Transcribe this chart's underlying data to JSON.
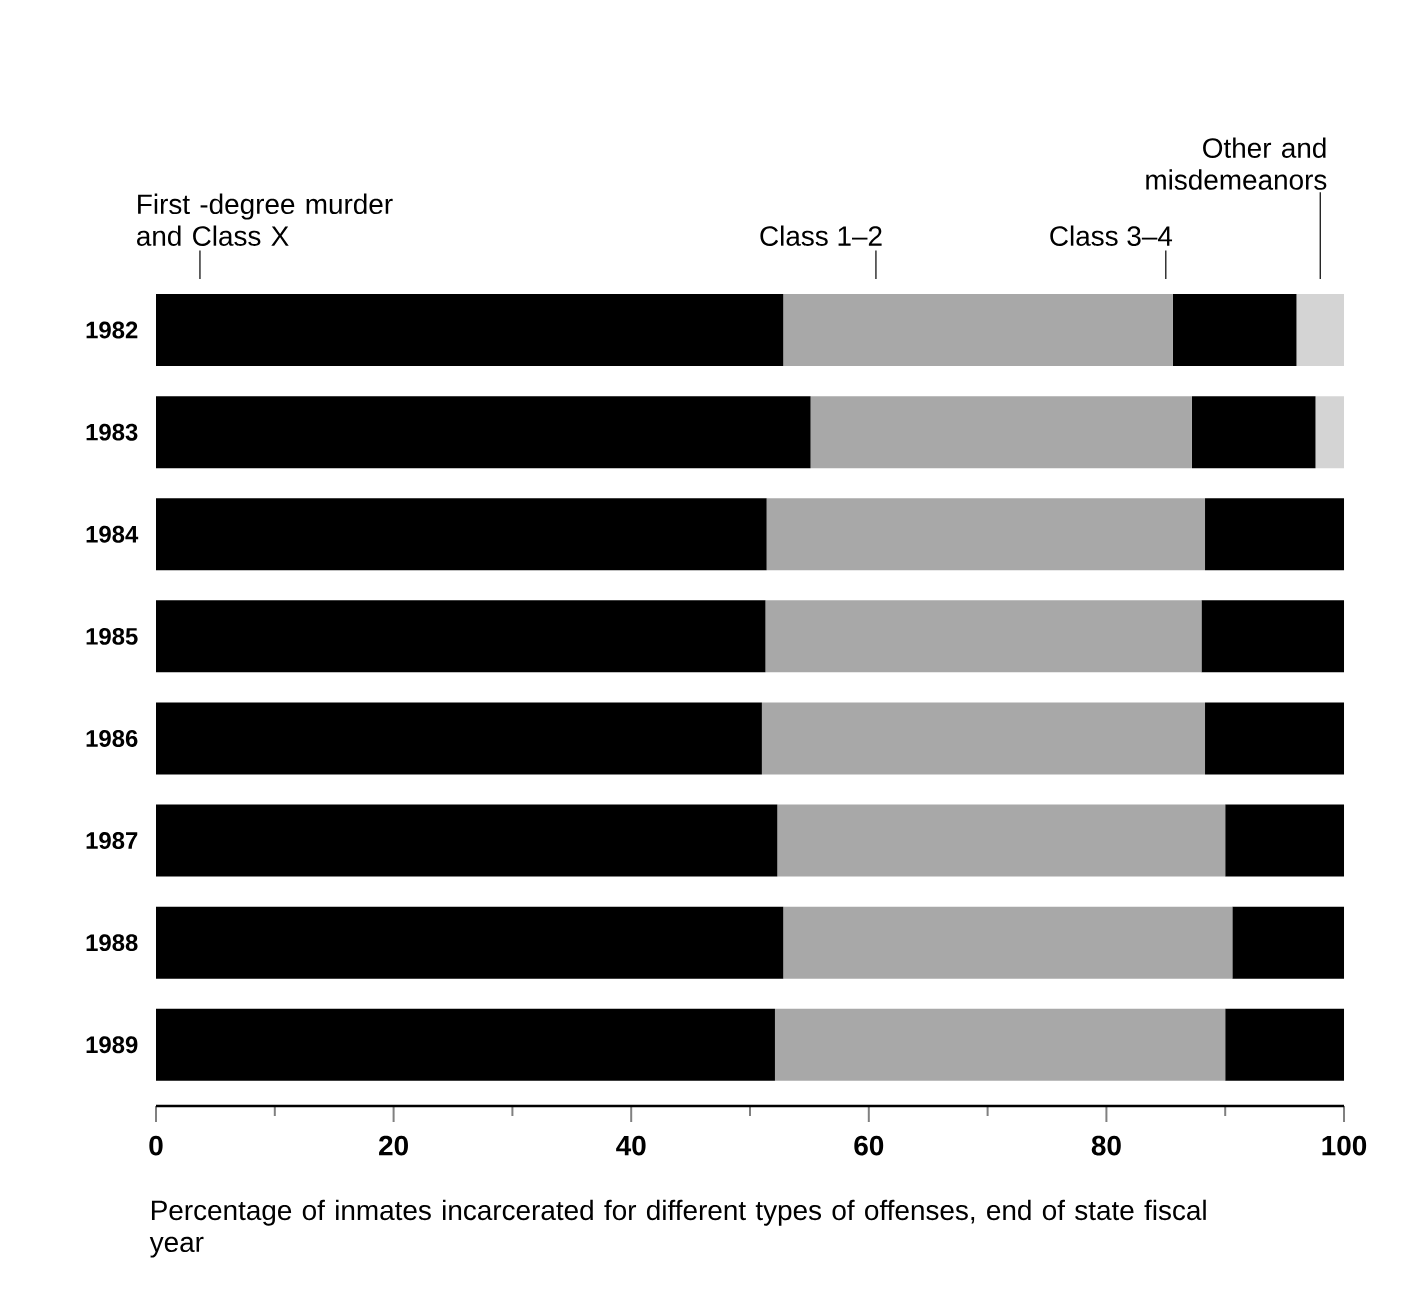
{
  "chart_data": {
    "type": "bar",
    "orientation": "horizontal",
    "stacked": true,
    "xlabel": "Percentage of inmates incarcerated for different types of offenses, end of state fiscal year",
    "categories": [
      "1982",
      "1983",
      "1984",
      "1985",
      "1986",
      "1987",
      "1988",
      "1989"
    ],
    "series": [
      {
        "name": "First -degree murder and Class X",
        "color": "#000000",
        "values": [
          52.8,
          55.1,
          51.4,
          51.3,
          51.0,
          52.3,
          52.8,
          52.1
        ]
      },
      {
        "name": "Class 1–2",
        "color": "#a8a8a8",
        "values": [
          32.8,
          32.1,
          36.9,
          36.7,
          37.3,
          37.7,
          37.8,
          37.9
        ]
      },
      {
        "name": "Class 3–4",
        "color": "#000000",
        "values": [
          10.4,
          10.4,
          11.7,
          12.0,
          11.7,
          10.0,
          9.4,
          10.0
        ]
      },
      {
        "name": "Other and misdemeanors",
        "color": "#d4d4d4",
        "values": [
          4.0,
          2.4,
          0,
          0,
          0,
          0,
          0,
          0
        ]
      }
    ],
    "xlim": [
      0,
      100
    ],
    "xticks": [
      0,
      20,
      40,
      60,
      80,
      100
    ],
    "grid": false
  }
}
